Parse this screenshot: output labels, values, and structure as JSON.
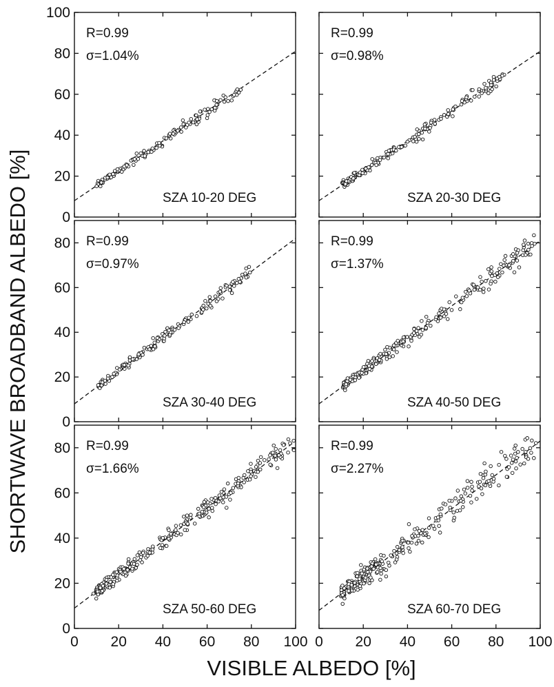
{
  "chart_data": {
    "type": "scatter",
    "xlabel": "VISIBLE ALBEDO [%]",
    "ylabel": "SHORTWAVE BROADBAND ALBEDO [%]",
    "x_ticks": [
      0,
      20,
      40,
      60,
      80,
      100
    ],
    "y_ticks": [
      0,
      20,
      40,
      60,
      80,
      100
    ],
    "panels": [
      {
        "id": "sza-10-20",
        "label": "SZA 10-20 DEG",
        "r_text": "R=0.99",
        "sigma_text": "σ=1.04%",
        "xlim": [
          0,
          100
        ],
        "ylim": [
          0,
          100
        ],
        "fit": {
          "x0": 0,
          "y0": 8,
          "x1": 100,
          "y1": 81
        },
        "x_range": [
          11,
          75
        ],
        "spread": 1.3,
        "n_points": 160,
        "y_tick_labels": [
          "0",
          "20",
          "40",
          "60",
          "80",
          "100"
        ],
        "x_tick_labels": []
      },
      {
        "id": "sza-20-30",
        "label": "SZA 20-30 DEG",
        "r_text": "R=0.99",
        "sigma_text": "σ=0.98%",
        "xlim": [
          0,
          100
        ],
        "ylim": [
          0,
          100
        ],
        "fit": {
          "x0": 0,
          "y0": 8,
          "x1": 100,
          "y1": 81
        },
        "x_range": [
          11,
          85
        ],
        "spread": 1.2,
        "n_points": 190,
        "y_tick_labels": [],
        "x_tick_labels": []
      },
      {
        "id": "sza-30-40",
        "label": "SZA 30-40 DEG",
        "r_text": "R=0.99",
        "sigma_text": "σ=0.97%",
        "xlim": [
          0,
          100
        ],
        "ylim": [
          0,
          90
        ],
        "fit": {
          "x0": 0,
          "y0": 8,
          "x1": 100,
          "y1": 82
        },
        "x_range": [
          11,
          80
        ],
        "spread": 1.1,
        "n_points": 180,
        "y_tick_labels": [
          "0",
          "20",
          "40",
          "60",
          "80"
        ],
        "x_tick_labels": []
      },
      {
        "id": "sza-40-50",
        "label": "SZA 40-50 DEG",
        "r_text": "R=0.99",
        "sigma_text": "σ=1.37%",
        "xlim": [
          0,
          100
        ],
        "ylim": [
          0,
          90
        ],
        "fit": {
          "x0": 0,
          "y0": 8,
          "x1": 100,
          "y1": 81
        },
        "x_range": [
          11,
          98
        ],
        "spread": 1.8,
        "n_points": 260,
        "y_tick_labels": [],
        "x_tick_labels": []
      },
      {
        "id": "sza-50-60",
        "label": "SZA 50-60 DEG",
        "r_text": "R=0.99",
        "sigma_text": "σ=1.66%",
        "xlim": [
          0,
          100
        ],
        "ylim": [
          0,
          90
        ],
        "fit": {
          "x0": 0,
          "y0": 9,
          "x1": 100,
          "y1": 83
        },
        "x_range": [
          10,
          99
        ],
        "spread": 2.1,
        "n_points": 300,
        "y_tick_labels": [
          "0",
          "20",
          "40",
          "60",
          "80"
        ],
        "x_tick_labels": [
          "0",
          "20",
          "40",
          "60",
          "80",
          "100"
        ]
      },
      {
        "id": "sza-60-70",
        "label": "SZA 60-70 DEG",
        "r_text": "R=0.99",
        "sigma_text": "σ=2.27%",
        "xlim": [
          0,
          100
        ],
        "ylim": [
          0,
          90
        ],
        "fit": {
          "x0": 0,
          "y0": 8,
          "x1": 100,
          "y1": 83
        },
        "x_range": [
          10,
          98
        ],
        "spread": 3.0,
        "n_points": 300,
        "y_tick_labels": [],
        "x_tick_labels": [
          "0",
          "20",
          "40",
          "60",
          "80",
          "100"
        ]
      }
    ]
  }
}
